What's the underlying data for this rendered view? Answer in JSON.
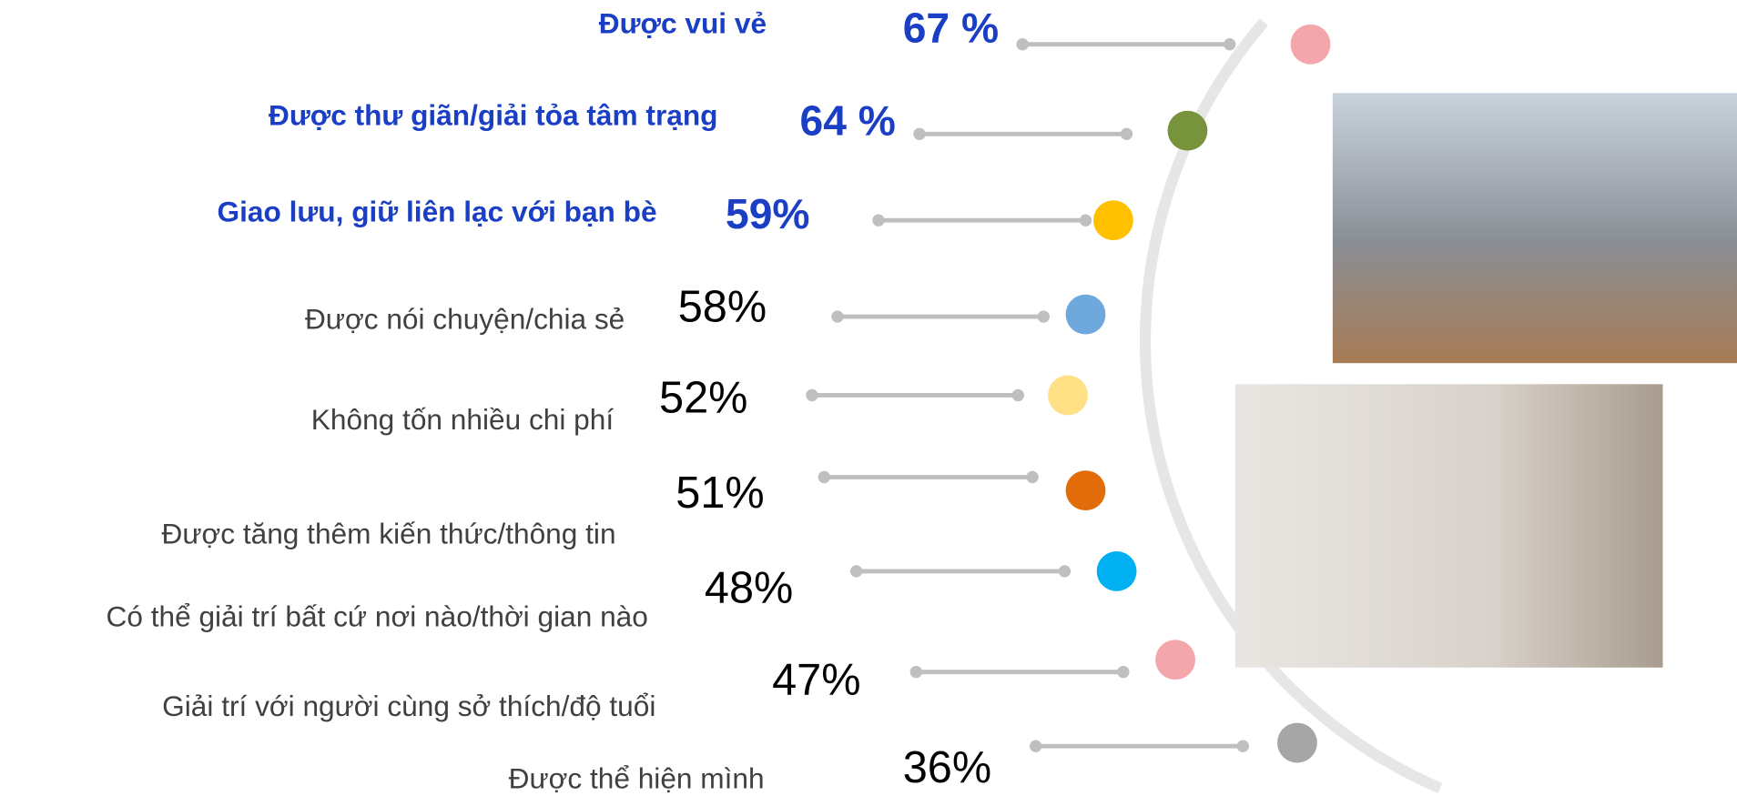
{
  "items": [
    {
      "label": "Được vui vẻ",
      "value_label": "67 %",
      "color": "#f4a6ad"
    },
    {
      "label": "Được thư giãn/giải tỏa tâm trạng",
      "value_label": "64 %",
      "color": "#77933c"
    },
    {
      "label": "Giao lưu, giữ liên lạc với bạn bè",
      "value_label": "59%",
      "color": "#ffc000"
    },
    {
      "label": "Được nói chuyện/chia sẻ",
      "value_label": "58%",
      "color": "#6fa8dc"
    },
    {
      "label": "Không tốn nhiều chi phí",
      "value_label": "52%",
      "color": "#ffe084"
    },
    {
      "label": "Được tăng thêm kiến thức/thông tin",
      "value_label": "51%",
      "color": "#e36c0a"
    },
    {
      "label": "Có thể giải trí bất cứ nơi nào/thời gian nào",
      "value_label": "48%",
      "color": "#00b0f0"
    },
    {
      "label": "Giải trí với người cùng sở thích/độ tuổi",
      "value_label": "47%",
      "color": "#f4a6ad"
    },
    {
      "label": "Được thể hiện mình",
      "value_label": "36%",
      "color": "#a6a6a6"
    }
  ]
}
